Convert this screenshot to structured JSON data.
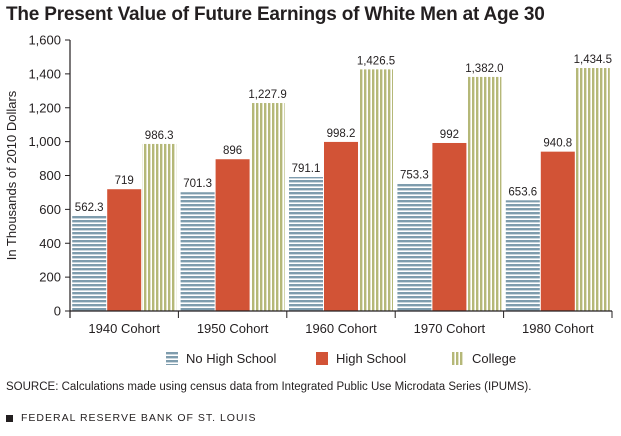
{
  "colors": {
    "no_high_school": "#7e9cad",
    "high_school": "#d25336",
    "college": "#b5b878",
    "axis": "#231f20"
  },
  "footer": {
    "source": "SOURCE: Calculations made using census data from Integrated Public Use Microdata Series (IPUMS).",
    "org": "FEDERAL RESERVE BANK OF ST. LOUIS"
  },
  "chart_data": {
    "type": "bar",
    "title": "The Present Value of Future Earnings of White Men at Age 30",
    "ylabel": "In Thousands of 2010 Dollars",
    "xlabel": "",
    "ylim": [
      0,
      1600
    ],
    "yticks": [
      "0",
      "200",
      "400",
      "600",
      "800",
      "1,000",
      "1,200",
      "1,400",
      "1,600"
    ],
    "categories": [
      "1940 Cohort",
      "1950 Cohort",
      "1960 Cohort",
      "1970 Cohort",
      "1980 Cohort"
    ],
    "series": [
      {
        "name": "No High School",
        "pattern": "horizontal-stripes",
        "values": [
          562.3,
          701.3,
          791.1,
          753.3,
          653.6
        ],
        "labels": [
          "562.3",
          "701.3",
          "791.1",
          "753.3",
          "653.6"
        ]
      },
      {
        "name": "High School",
        "pattern": "solid",
        "values": [
          719,
          896,
          998.2,
          992,
          940.8
        ],
        "labels": [
          "719",
          "896",
          "998.2",
          "992",
          "940.8"
        ]
      },
      {
        "name": "College",
        "pattern": "vertical-stripes",
        "values": [
          986.3,
          1227.9,
          1426.5,
          1382.0,
          1434.5
        ],
        "labels": [
          "986.3",
          "1,227.9",
          "1,426.5",
          "1,382.0",
          "1,434.5"
        ]
      }
    ],
    "grid": false,
    "legend": "bottom"
  }
}
